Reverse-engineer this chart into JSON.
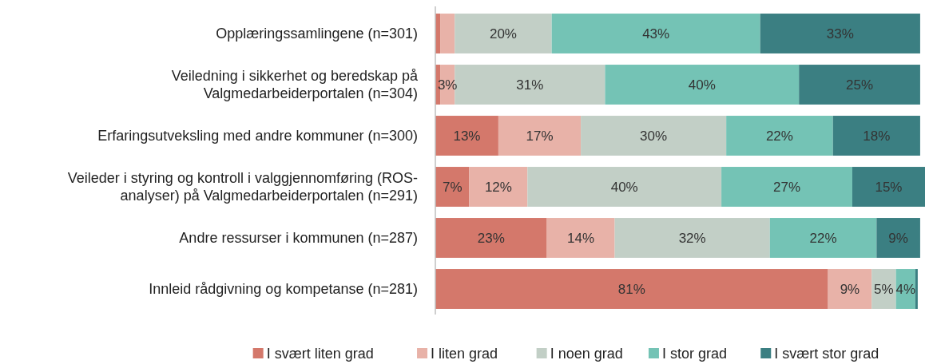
{
  "chart_data": {
    "type": "bar",
    "orientation": "horizontal",
    "stacked": true,
    "xlim": [
      0,
      101
    ],
    "legend": "bottom",
    "categories": [
      "Opplæringssamlingene (n=301)",
      "Veiledning i sikkerhet og beredskap på\nValgmedarbeiderportalen (n=304)",
      "Erfaringsutveksling med andre kommuner (n=300)",
      "Veileder i styring og kontroll i valggjennomføring (ROS-\nanalyser) på Valgmedarbeiderportalen (n=291)",
      "Andre ressurser i kommunen (n=287)",
      "Innleid rådgivning og kompetanse (n=281)"
    ],
    "series": [
      {
        "name": "I svært liten grad",
        "color": "#d4786b",
        "values": [
          1,
          1,
          13,
          7,
          23,
          81
        ],
        "value_labels": [
          null,
          null,
          "13%",
          "7%",
          "23%",
          "81%"
        ]
      },
      {
        "name": "I liten grad",
        "color": "#e8b2a8",
        "values": [
          3,
          3,
          17,
          12,
          14,
          9
        ],
        "value_labels": [
          null,
          "3%",
          "17%",
          "12%",
          "14%",
          "9%"
        ]
      },
      {
        "name": "I noen grad",
        "color": "#c2cfc6",
        "values": [
          20,
          31,
          30,
          40,
          32,
          5
        ],
        "value_labels": [
          "20%",
          "31%",
          "30%",
          "40%",
          "32%",
          "5%"
        ]
      },
      {
        "name": "I stor grad",
        "color": "#74c3b5",
        "values": [
          43,
          40,
          22,
          27,
          22,
          4
        ],
        "value_labels": [
          "43%",
          "40%",
          "22%",
          "27%",
          "22%",
          "4%"
        ]
      },
      {
        "name": "I svært stor grad",
        "color": "#3b7f82",
        "values": [
          33,
          25,
          18,
          15,
          9,
          0.5
        ],
        "value_labels": [
          "33%",
          "25%",
          "18%",
          "15%",
          "9%",
          null
        ]
      }
    ]
  }
}
